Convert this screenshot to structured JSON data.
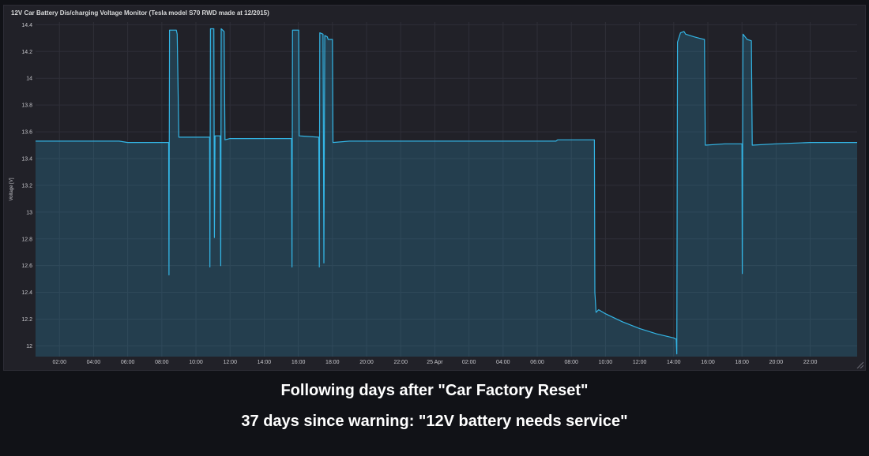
{
  "panel": {
    "title": "12V Car Battery Dis/charging Voltage Monitor (Tesla model S70 RWD made at 12/2015)"
  },
  "captions": {
    "line1": "Following days after \"Car Factory Reset\"",
    "line2": "37 days since warning: \"12V battery needs service\""
  },
  "colors": {
    "line": "#33b5e5",
    "fill": "#33b5e5",
    "background": "#111217",
    "panel": "#212128"
  },
  "icons": {
    "resize": "resize-handle-icon"
  },
  "chart_data": {
    "type": "area",
    "title": "12V Car Battery Dis/charging Voltage Monitor (Tesla model S70 RWD made at 12/2015)",
    "ylabel": "Voltage [V]",
    "xlabel": "",
    "ylim": [
      11.92,
      14.42
    ],
    "xlim": [
      0.6,
      48.75
    ],
    "grid": true,
    "legend": "none",
    "x_unit": "hours since 00:00 on 24 Apr",
    "yticks": [
      {
        "v": 12,
        "label": "12"
      },
      {
        "v": 12.2,
        "label": "12.2"
      },
      {
        "v": 12.4,
        "label": "12.4"
      },
      {
        "v": 12.6,
        "label": "12.6"
      },
      {
        "v": 12.8,
        "label": "12.8"
      },
      {
        "v": 13,
        "label": "13"
      },
      {
        "v": 13.2,
        "label": "13.2"
      },
      {
        "v": 13.4,
        "label": "13.4"
      },
      {
        "v": 13.6,
        "label": "13.6"
      },
      {
        "v": 13.8,
        "label": "13.8"
      },
      {
        "v": 14,
        "label": "14"
      },
      {
        "v": 14.2,
        "label": "14.2"
      },
      {
        "v": 14.4,
        "label": "14.4"
      }
    ],
    "xticks": [
      {
        "v": 2,
        "label": "02:00"
      },
      {
        "v": 4,
        "label": "04:00"
      },
      {
        "v": 6,
        "label": "06:00"
      },
      {
        "v": 8,
        "label": "08:00"
      },
      {
        "v": 10,
        "label": "10:00"
      },
      {
        "v": 12,
        "label": "12:00"
      },
      {
        "v": 14,
        "label": "14:00"
      },
      {
        "v": 16,
        "label": "16:00"
      },
      {
        "v": 18,
        "label": "18:00"
      },
      {
        "v": 20,
        "label": "20:00"
      },
      {
        "v": 22,
        "label": "22:00"
      },
      {
        "v": 24,
        "label": "25 Apr"
      },
      {
        "v": 26,
        "label": "02:00"
      },
      {
        "v": 28,
        "label": "04:00"
      },
      {
        "v": 30,
        "label": "06:00"
      },
      {
        "v": 32,
        "label": "08:00"
      },
      {
        "v": 34,
        "label": "10:00"
      },
      {
        "v": 36,
        "label": "12:00"
      },
      {
        "v": 38,
        "label": "14:00"
      },
      {
        "v": 40,
        "label": "16:00"
      },
      {
        "v": 42,
        "label": "18:00"
      },
      {
        "v": 44,
        "label": "20:00"
      },
      {
        "v": 46,
        "label": "22:00"
      }
    ],
    "series": [
      {
        "name": "Voltage",
        "points": [
          [
            0.6,
            13.53
          ],
          [
            3.0,
            13.53
          ],
          [
            5.5,
            13.53
          ],
          [
            6.0,
            13.52
          ],
          [
            7.5,
            13.52
          ],
          [
            8.4,
            13.52
          ],
          [
            8.42,
            12.53
          ],
          [
            8.45,
            14.36
          ],
          [
            8.85,
            14.36
          ],
          [
            8.9,
            14.33
          ],
          [
            9.0,
            13.56
          ],
          [
            10.8,
            13.56
          ],
          [
            10.82,
            12.59
          ],
          [
            10.85,
            14.37
          ],
          [
            11.05,
            14.37
          ],
          [
            11.08,
            12.81
          ],
          [
            11.12,
            13.57
          ],
          [
            11.42,
            13.57
          ],
          [
            11.45,
            12.6
          ],
          [
            11.48,
            14.37
          ],
          [
            11.65,
            14.35
          ],
          [
            11.7,
            13.54
          ],
          [
            12.0,
            13.55
          ],
          [
            15.6,
            13.55
          ],
          [
            15.63,
            12.59
          ],
          [
            15.66,
            14.36
          ],
          [
            16.02,
            14.36
          ],
          [
            16.05,
            13.57
          ],
          [
            17.2,
            13.56
          ],
          [
            17.23,
            12.59
          ],
          [
            17.26,
            14.34
          ],
          [
            17.45,
            14.33
          ],
          [
            17.5,
            12.62
          ],
          [
            17.55,
            14.32
          ],
          [
            17.7,
            14.31
          ],
          [
            17.75,
            14.29
          ],
          [
            18.0,
            14.29
          ],
          [
            18.03,
            13.52
          ],
          [
            19.0,
            13.53
          ],
          [
            25.0,
            13.53
          ],
          [
            28.0,
            13.53
          ],
          [
            31.1,
            13.53
          ],
          [
            31.2,
            13.54
          ],
          [
            33.35,
            13.54
          ],
          [
            33.38,
            12.4
          ],
          [
            33.45,
            12.25
          ],
          [
            33.6,
            12.27
          ],
          [
            34.0,
            12.24
          ],
          [
            35.0,
            12.18
          ],
          [
            36.0,
            12.13
          ],
          [
            37.0,
            12.09
          ],
          [
            38.0,
            12.06
          ],
          [
            38.15,
            12.05
          ],
          [
            38.18,
            11.94
          ],
          [
            38.22,
            14.27
          ],
          [
            38.4,
            14.34
          ],
          [
            38.6,
            14.35
          ],
          [
            38.7,
            14.33
          ],
          [
            39.2,
            14.31
          ],
          [
            39.5,
            14.3
          ],
          [
            39.8,
            14.29
          ],
          [
            39.85,
            13.5
          ],
          [
            41.0,
            13.51
          ],
          [
            42.0,
            13.51
          ],
          [
            42.02,
            12.54
          ],
          [
            42.06,
            14.33
          ],
          [
            42.3,
            14.29
          ],
          [
            42.55,
            14.28
          ],
          [
            42.6,
            13.5
          ],
          [
            44.0,
            13.51
          ],
          [
            46.0,
            13.52
          ],
          [
            48.75,
            13.52
          ]
        ]
      }
    ]
  }
}
